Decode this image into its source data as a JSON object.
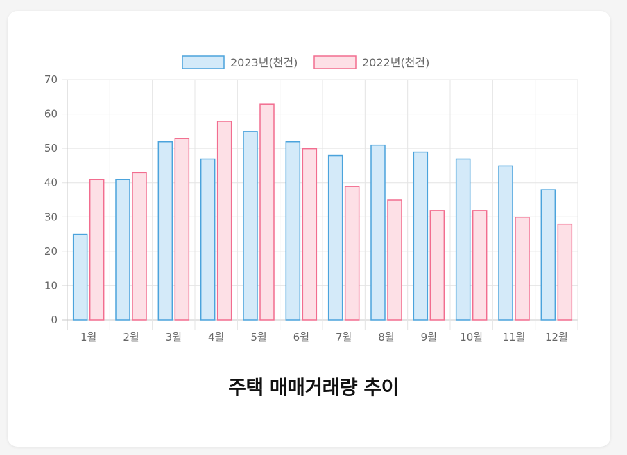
{
  "chart_data": {
    "type": "bar",
    "title": "주택 매매거래량 추이",
    "xlabel": "",
    "ylabel": "",
    "categories": [
      "1월",
      "2월",
      "3월",
      "4월",
      "5월",
      "6월",
      "7월",
      "8월",
      "9월",
      "10월",
      "11월",
      "12월"
    ],
    "series": [
      {
        "name": "2023년(천건)",
        "values": [
          25,
          41,
          52,
          47,
          55,
          52,
          48,
          51,
          49,
          47,
          45,
          38
        ],
        "fill": "#d4eaf9",
        "stroke": "#4ba3dc"
      },
      {
        "name": "2022년(천건)",
        "values": [
          41,
          43,
          53,
          58,
          63,
          50,
          39,
          35,
          32,
          32,
          30,
          28
        ],
        "fill": "#fde0e6",
        "stroke": "#f26d8f"
      }
    ],
    "ylim": [
      0,
      70
    ],
    "yticks": [
      0,
      10,
      20,
      30,
      40,
      50,
      60,
      70
    ],
    "grid": true,
    "legend_position": "top"
  }
}
